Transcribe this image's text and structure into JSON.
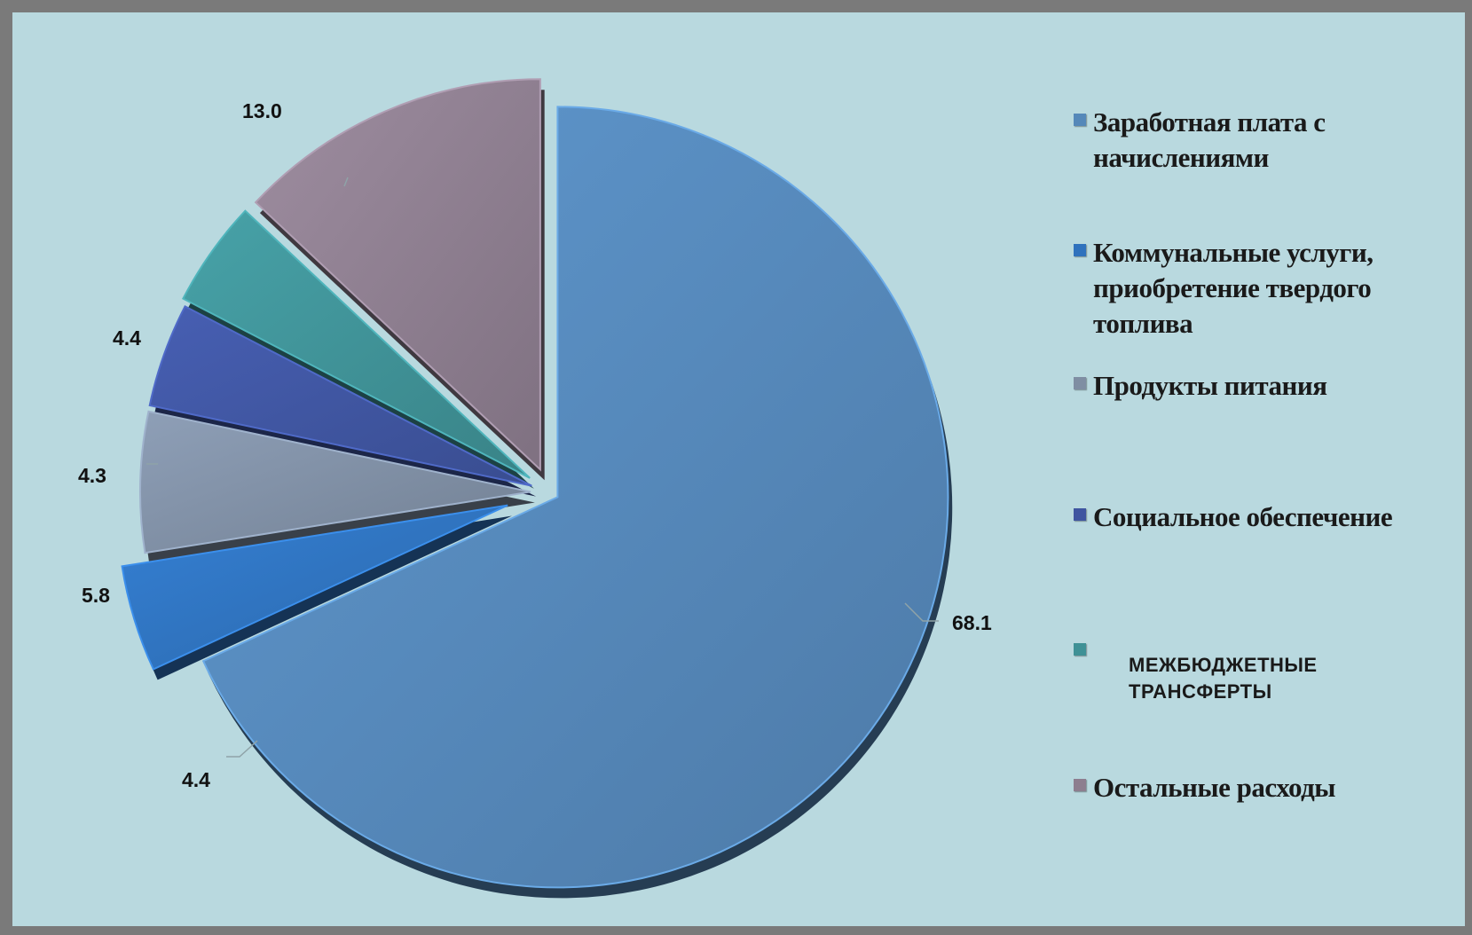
{
  "chart_data": {
    "type": "pie",
    "title": "",
    "categories": [
      "Заработная плата с начислениями",
      "Коммунальные услуги, приобретение твердого топлива",
      "Продукты питания",
      "Социальное обеспечение",
      "МЕЖБЮДЖЕТНЫЕ ТРАНСФЕРТЫ",
      "Остальные расходы"
    ],
    "values": [
      68.1,
      4.4,
      5.8,
      4.3,
      4.4,
      13.0
    ],
    "value_labels": [
      "68.1",
      "4.4",
      "5.8",
      "4.3",
      "4.4",
      "13.0"
    ],
    "colors": [
      "#5588b9",
      "#2f72bd",
      "#7f8ea3",
      "#3f55a0",
      "#3f9196",
      "#8d7e8f"
    ],
    "legend_position": "right",
    "exploded": true
  },
  "legend": {
    "items": [
      {
        "label": "Заработная плата с начислениями",
        "lines": [
          "Заработная плата с",
          "начислениями"
        ]
      },
      {
        "label": "Коммунальные услуги, приобретение твердого топлива",
        "lines": [
          "Коммунальные услуги,",
          "приобретение твердого",
          "топлива"
        ]
      },
      {
        "label": "Продукты питания",
        "lines": [
          "Продукты питания"
        ]
      },
      {
        "label": "Социальное обеспечение",
        "lines": [
          "Социальное обеспечение"
        ]
      },
      {
        "label": "МЕЖБЮДЖЕТНЫЕ ТРАНСФЕРТЫ",
        "lines": [
          "МЕЖБЮДЖЕТНЫЕ",
          "ТРАНСФЕРТЫ"
        ]
      },
      {
        "label": "Остальные расходы",
        "lines": [
          "Остальные расходы"
        ]
      }
    ]
  }
}
